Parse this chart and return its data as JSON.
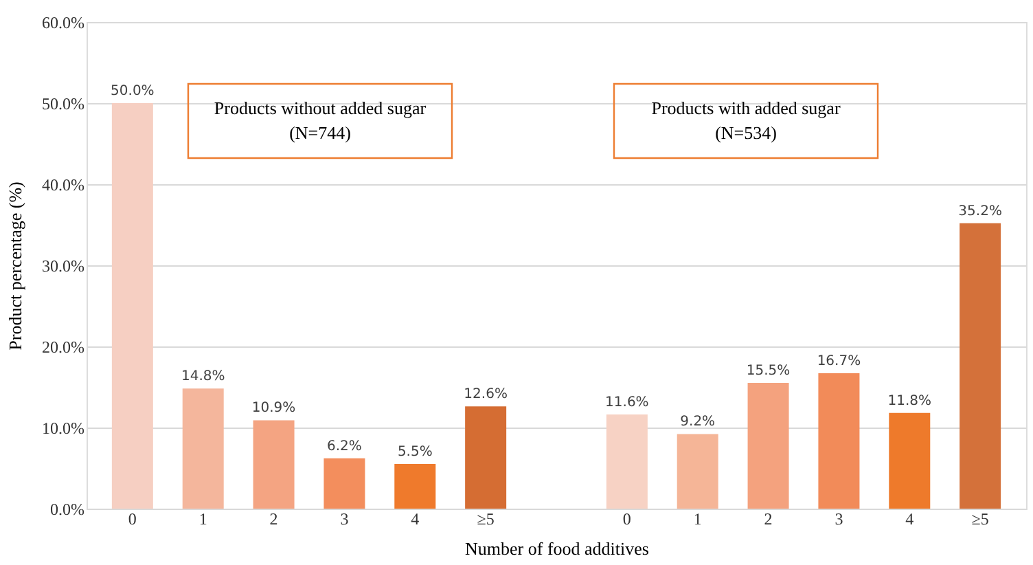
{
  "chart_data": {
    "type": "bar",
    "xlabel": "Number of food additives",
    "ylabel": "Product percentage (%)",
    "categories": [
      "0",
      "1",
      "2",
      "3",
      "4",
      "≥5",
      null,
      "0",
      "1",
      "2",
      "3",
      "4",
      "≥5"
    ],
    "values": [
      50.0,
      14.8,
      10.9,
      6.2,
      5.5,
      12.6,
      null,
      11.6,
      9.2,
      15.5,
      16.7,
      11.8,
      35.2
    ],
    "value_labels": [
      "50.0%",
      "14.8%",
      "10.9%",
      "6.2%",
      "5.5%",
      "12.6%",
      null,
      "11.6%",
      "9.2%",
      "15.5%",
      "16.7%",
      "11.8%",
      "35.2%"
    ],
    "colors": [
      "#f6cfc2",
      "#f4b69c",
      "#f4a482",
      "#f38e5d",
      "#ef7a2c",
      "#d56d33",
      "#ffffff",
      "#f7d2c4",
      "#f5b597",
      "#f4a27e",
      "#f28b59",
      "#ee7a2b",
      "#d4713a"
    ],
    "ylim": [
      0,
      60
    ],
    "yticks": [
      {
        "value": 0,
        "label": "0.0%"
      },
      {
        "value": 10,
        "label": "10.0%"
      },
      {
        "value": 20,
        "label": "20.0%"
      },
      {
        "value": 30,
        "label": "30.0%"
      },
      {
        "value": 40,
        "label": "40.0%"
      },
      {
        "value": 50,
        "label": "50.0%"
      },
      {
        "value": 60,
        "label": "60.0%"
      }
    ],
    "annotations": [
      "Products without added sugar\n(N=744)",
      "Products with added sugar\n(N=534)"
    ],
    "grid": "y"
  }
}
